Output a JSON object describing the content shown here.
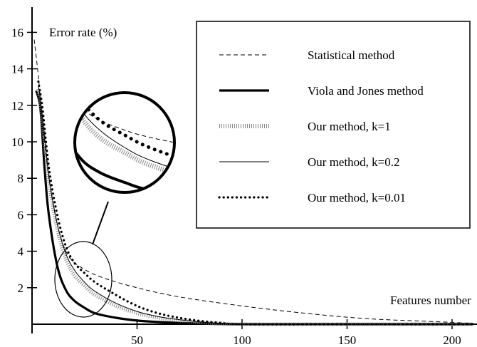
{
  "chart_data": {
    "type": "line",
    "ylabel": "Error rate (%)",
    "xlabel": "Features number",
    "xlim": [
      0,
      210
    ],
    "ylim": [
      0,
      16
    ],
    "x_ticks": [
      50,
      100,
      150,
      200
    ],
    "y_ticks": [
      2,
      4,
      6,
      8,
      10,
      12,
      14,
      16
    ],
    "x_tick_labels": [
      "50",
      "100",
      "150",
      "200"
    ],
    "y_tick_labels": [
      "2",
      "4",
      "6",
      "8",
      "10",
      "12",
      "14",
      "16"
    ],
    "grid": false,
    "legend_position": "top-right",
    "inset": "magnified view of curves near x≈15–35, y≈0.5–4.5",
    "series": [
      {
        "name": "Statistical method",
        "style": "dashed-thin",
        "x": [
          1,
          3,
          5,
          8,
          12,
          17,
          25,
          35,
          50,
          70,
          100,
          130,
          160,
          190,
          210
        ],
        "y": [
          15.6,
          13.6,
          11.0,
          8.0,
          5.5,
          3.8,
          3.0,
          2.5,
          2.0,
          1.5,
          1.0,
          0.6,
          0.3,
          0.15,
          0.05
        ]
      },
      {
        "name": "Viola and Jones method",
        "style": "solid-thick",
        "x": [
          2,
          4,
          6,
          8,
          12,
          16,
          20,
          25,
          30,
          40,
          50,
          60,
          70,
          85,
          100,
          120,
          150,
          210
        ],
        "y": [
          12.8,
          11.8,
          8.5,
          6.0,
          3.2,
          1.9,
          1.3,
          0.9,
          0.6,
          0.35,
          0.2,
          0.12,
          0.07,
          0.02,
          0.0,
          0.0,
          0.0,
          0.0
        ]
      },
      {
        "name": "Our method, k=1",
        "style": "hatched",
        "x": [
          3,
          5,
          8,
          12,
          16,
          20,
          25,
          30,
          40,
          50,
          60,
          70,
          80,
          90,
          100,
          150,
          210
        ],
        "y": [
          12.9,
          11.0,
          7.8,
          5.2,
          3.6,
          2.7,
          2.1,
          1.6,
          1.0,
          0.6,
          0.35,
          0.2,
          0.1,
          0.04,
          0.0,
          0.0,
          0.0
        ]
      },
      {
        "name": "Our method, k=0.2",
        "style": "solid-thin",
        "x": [
          3,
          5,
          8,
          12,
          16,
          20,
          25,
          30,
          40,
          50,
          60,
          70,
          80,
          90,
          100,
          150,
          210
        ],
        "y": [
          13.1,
          11.3,
          8.1,
          5.5,
          3.9,
          3.0,
          2.3,
          1.8,
          1.15,
          0.7,
          0.42,
          0.25,
          0.12,
          0.05,
          0.0,
          0.0,
          0.0
        ]
      },
      {
        "name": "Our method, k=0.01",
        "style": "dotted-thick",
        "x": [
          3,
          5,
          8,
          12,
          16,
          20,
          25,
          30,
          40,
          50,
          60,
          70,
          80,
          90,
          100,
          150,
          210
        ],
        "y": [
          13.3,
          11.8,
          8.6,
          6.0,
          4.3,
          3.4,
          2.8,
          2.3,
          1.6,
          1.0,
          0.6,
          0.35,
          0.18,
          0.07,
          0.0,
          0.0,
          0.0
        ]
      }
    ]
  }
}
